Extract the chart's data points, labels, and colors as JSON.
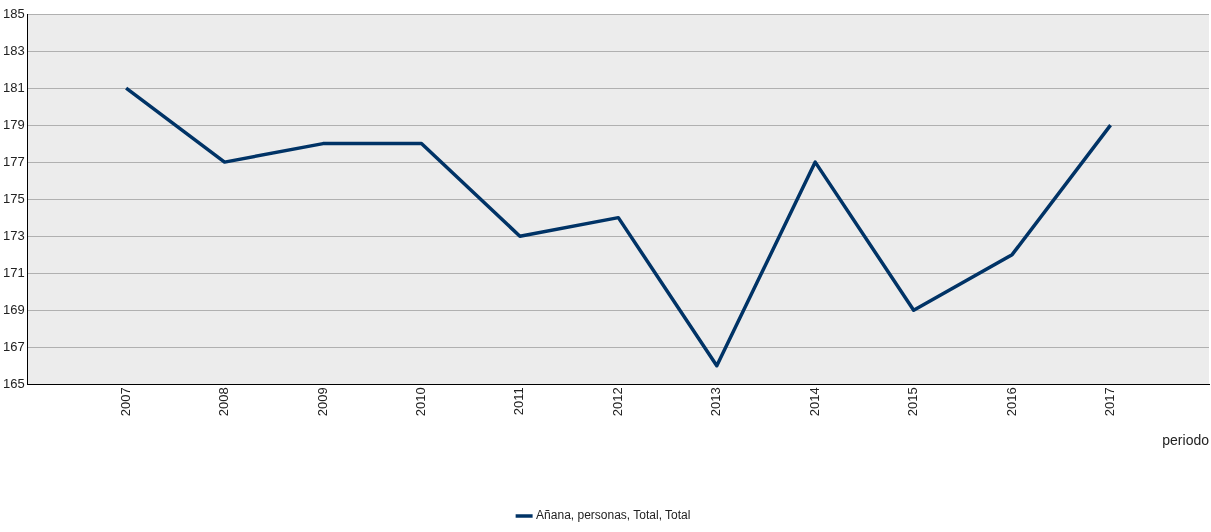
{
  "chart_data": {
    "type": "line",
    "xlabel": "periodo",
    "categories": [
      "2007",
      "2008",
      "2009",
      "2010",
      "2011",
      "2012",
      "2013",
      "2014",
      "2015",
      "2016",
      "2017"
    ],
    "series": [
      {
        "name": "Añana, personas, Total, Total",
        "color": "#003366",
        "values": [
          181,
          177,
          178,
          178,
          173,
          174,
          166,
          177,
          169,
          172,
          179
        ]
      }
    ],
    "ylim": [
      165,
      185
    ],
    "yticks": [
      165,
      167,
      169,
      171,
      173,
      175,
      177,
      179,
      181,
      183,
      185
    ],
    "grid": "y",
    "legend": "bottom",
    "marker": "none",
    "line_style": "solid"
  }
}
